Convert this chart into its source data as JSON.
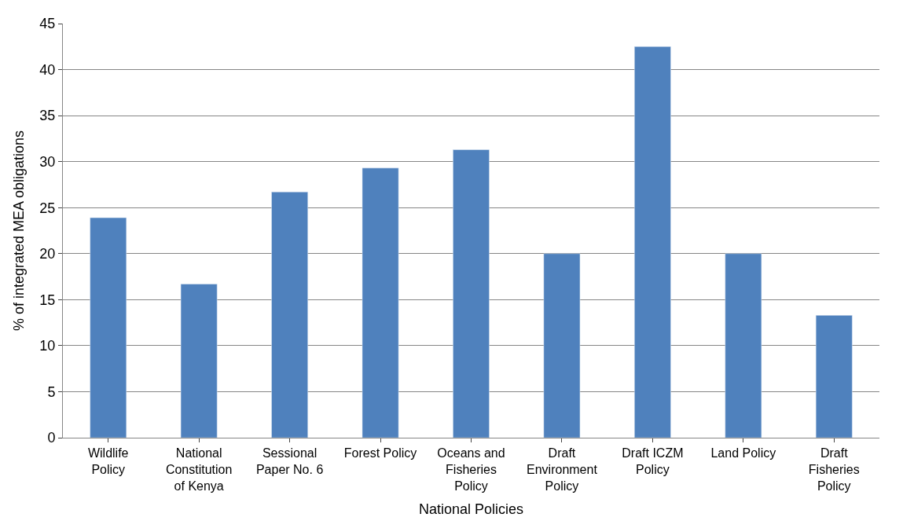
{
  "chart_data": {
    "type": "bar",
    "xlabel": "National Policies",
    "ylabel": "% of integrated MEA obligations",
    "categories": [
      "Wildlife Policy",
      "National Constitution of Kenya",
      "Sessional Paper No. 6",
      "Forest Policy",
      "Oceans and Fisheries Policy",
      "Draft Environment Policy",
      "Draft ICZM Policy",
      "Land Policy",
      "Draft Fisheries Policy"
    ],
    "values": [
      23.9,
      16.7,
      26.7,
      29.3,
      31.3,
      20.0,
      42.5,
      20.0,
      13.3
    ],
    "color": "#4f81bd",
    "ylim": [
      0,
      45
    ],
    "yticks": [
      0,
      5,
      10,
      15,
      20,
      25,
      30,
      35,
      40,
      45
    ],
    "grid": "y",
    "legend": false
  }
}
